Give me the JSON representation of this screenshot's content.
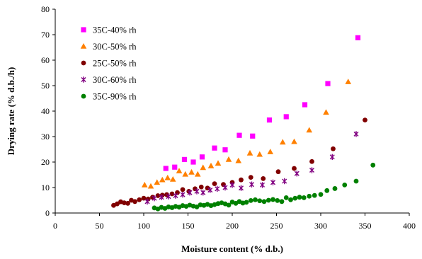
{
  "chart_data": {
    "type": "scatter",
    "xlabel": "Moisture content (% d.b.)",
    "ylabel": "Drying rate (% d.b./h)",
    "xlim": [
      0,
      400
    ],
    "ylim": [
      0,
      80
    ],
    "x_ticks": [
      0,
      50,
      100,
      150,
      200,
      250,
      300,
      350,
      400
    ],
    "y_ticks": [
      0,
      10,
      20,
      30,
      40,
      50,
      60,
      70,
      80
    ],
    "grid": false,
    "legend_position": "top-left",
    "series": [
      {
        "name": "35C-40% rh",
        "marker": "square",
        "color": "#ff00ff",
        "points": [
          [
            125,
            17.5
          ],
          [
            135,
            18
          ],
          [
            146,
            21
          ],
          [
            156,
            20
          ],
          [
            166,
            22
          ],
          [
            180,
            25.5
          ],
          [
            192,
            24.8
          ],
          [
            208,
            30.5
          ],
          [
            223,
            30.2
          ],
          [
            242,
            36.5
          ],
          [
            261,
            37.8
          ],
          [
            282,
            42.5
          ],
          [
            308,
            50.8
          ],
          [
            342,
            68.8
          ]
        ]
      },
      {
        "name": "30C-50% rh",
        "marker": "triangle",
        "color": "#ff8000",
        "points": [
          [
            101,
            11
          ],
          [
            108,
            10.5
          ],
          [
            115,
            12
          ],
          [
            121,
            13
          ],
          [
            127,
            13.8
          ],
          [
            133,
            13.2
          ],
          [
            140,
            16.5
          ],
          [
            147,
            15.2
          ],
          [
            154,
            16
          ],
          [
            161,
            15.2
          ],
          [
            167,
            17.8
          ],
          [
            176,
            18.5
          ],
          [
            184,
            19.5
          ],
          [
            196,
            21
          ],
          [
            207,
            20.5
          ],
          [
            220,
            23.5
          ],
          [
            231,
            23
          ],
          [
            243,
            24
          ],
          [
            257,
            27.8
          ],
          [
            270,
            28
          ],
          [
            287,
            32.5
          ],
          [
            306,
            39.5
          ],
          [
            331,
            51.5
          ]
        ]
      },
      {
        "name": "25C-50% rh",
        "marker": "circle",
        "color": "#800000",
        "points": [
          [
            66,
            3
          ],
          [
            70,
            3.6
          ],
          [
            74,
            4.4
          ],
          [
            78,
            4
          ],
          [
            82,
            3.8
          ],
          [
            86,
            5
          ],
          [
            90,
            4.5
          ],
          [
            95,
            5.2
          ],
          [
            100,
            5.8
          ],
          [
            105,
            5.5
          ],
          [
            110,
            6.2
          ],
          [
            116,
            6.8
          ],
          [
            121,
            7
          ],
          [
            126,
            7.2
          ],
          [
            132,
            7.5
          ],
          [
            138,
            8
          ],
          [
            144,
            9.2
          ],
          [
            151,
            8.5
          ],
          [
            158,
            9.5
          ],
          [
            165,
            10.2
          ],
          [
            172,
            9.8
          ],
          [
            180,
            11.5
          ],
          [
            190,
            11.2
          ],
          [
            200,
            12
          ],
          [
            210,
            13
          ],
          [
            221,
            14
          ],
          [
            235,
            13.5
          ],
          [
            252,
            16.2
          ],
          [
            270,
            17.5
          ],
          [
            290,
            20.2
          ],
          [
            314,
            25.2
          ],
          [
            350,
            36.5
          ]
        ]
      },
      {
        "name": "30C-60% rh",
        "marker": "asterisk",
        "color": "#800080",
        "points": [
          [
            104,
            4.5
          ],
          [
            112,
            5.8
          ],
          [
            120,
            6.2
          ],
          [
            128,
            6.5
          ],
          [
            136,
            6.8
          ],
          [
            144,
            7.2
          ],
          [
            152,
            8
          ],
          [
            160,
            8.5
          ],
          [
            167,
            8
          ],
          [
            175,
            9
          ],
          [
            183,
            9.5
          ],
          [
            192,
            10
          ],
          [
            200,
            11
          ],
          [
            210,
            9.8
          ],
          [
            222,
            11.2
          ],
          [
            234,
            11
          ],
          [
            246,
            12
          ],
          [
            259,
            12.5
          ],
          [
            273,
            15.5
          ],
          [
            290,
            16.8
          ],
          [
            313,
            22
          ],
          [
            340,
            31
          ]
        ]
      },
      {
        "name": "35C-90% rh",
        "marker": "circle",
        "color": "#008000",
        "points": [
          [
            112,
            2
          ],
          [
            116,
            1.6
          ],
          [
            120,
            2.2
          ],
          [
            124,
            1.8
          ],
          [
            128,
            2.4
          ],
          [
            132,
            2.1
          ],
          [
            136,
            2.6
          ],
          [
            140,
            2.3
          ],
          [
            144,
            2.9
          ],
          [
            148,
            2.6
          ],
          [
            152,
            3.1
          ],
          [
            156,
            2.7
          ],
          [
            160,
            2.4
          ],
          [
            164,
            3.2
          ],
          [
            168,
            3.0
          ],
          [
            172,
            3.4
          ],
          [
            176,
            2.9
          ],
          [
            180,
            3.3
          ],
          [
            184,
            3.7
          ],
          [
            188,
            4.0
          ],
          [
            192,
            3.6
          ],
          [
            196,
            3.1
          ],
          [
            200,
            4.3
          ],
          [
            204,
            3.8
          ],
          [
            208,
            4.5
          ],
          [
            212,
            3.9
          ],
          [
            216,
            4.2
          ],
          [
            221,
            4.9
          ],
          [
            226,
            5.2
          ],
          [
            231,
            4.8
          ],
          [
            236,
            4.5
          ],
          [
            241,
            5.0
          ],
          [
            246,
            5.3
          ],
          [
            251,
            4.9
          ],
          [
            256,
            4.5
          ],
          [
            261,
            6.0
          ],
          [
            266,
            5.2
          ],
          [
            271,
            5.8
          ],
          [
            276,
            6.2
          ],
          [
            281,
            6.0
          ],
          [
            287,
            6.6
          ],
          [
            293,
            6.9
          ],
          [
            300,
            7.3
          ],
          [
            307,
            8.8
          ],
          [
            316,
            9.6
          ],
          [
            327,
            11.0
          ],
          [
            340,
            12.5
          ],
          [
            359,
            18.8
          ]
        ]
      }
    ]
  }
}
